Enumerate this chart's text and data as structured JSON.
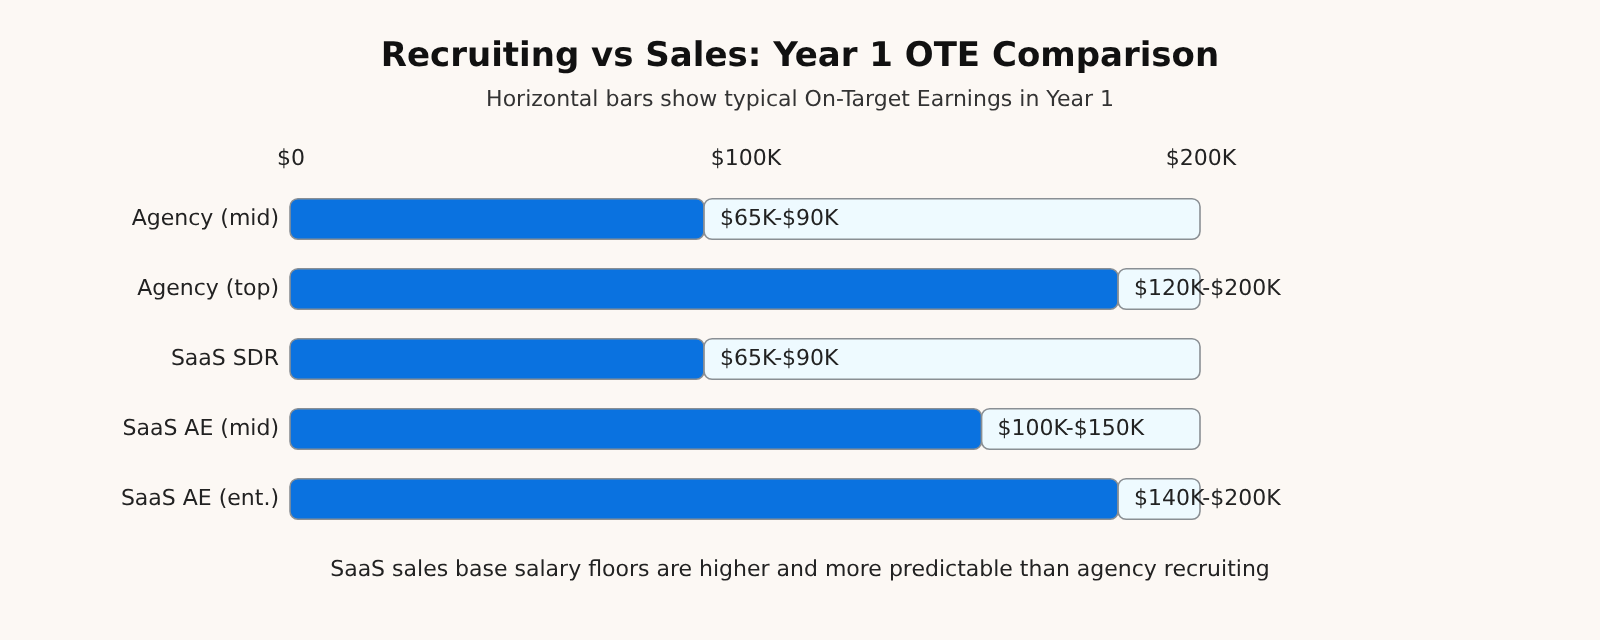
{
  "chart_data": {
    "type": "bar",
    "orientation": "horizontal",
    "stacked": true,
    "title": "Recruiting vs Sales: Year 1 OTE Comparison",
    "subtitle": "Horizontal bars show typical On-Target Earnings in Year 1",
    "categories": [
      "Agency (mid)",
      "Agency (top)",
      "SaaS SDR",
      "SaaS AE (mid)",
      "SaaS AE (ent.)"
    ],
    "series": [
      {
        "color": "#0a72e0",
        "values": [
          91,
          182,
          91,
          152,
          182
        ]
      },
      {
        "color": "#eefaff",
        "values": [
          109,
          18,
          109,
          48,
          18
        ]
      }
    ],
    "xlim": [
      0,
      200
    ],
    "xticks": [
      {
        "value": 0,
        "label": "$0"
      },
      {
        "value": 100,
        "label": "$100K"
      },
      {
        "value": 200,
        "label": "$200K"
      }
    ],
    "grid": false,
    "legend": false,
    "annotations": [
      {
        "text": "$65K-$90K",
        "x": 91,
        "y": "Agency (mid)"
      },
      {
        "text": "$120K-$200K",
        "x": 182,
        "y": "Agency (top)"
      },
      {
        "text": "$65K-$90K",
        "x": 91,
        "y": "SaaS SDR"
      },
      {
        "text": "$100K-$150K",
        "x": 152,
        "y": "SaaS AE (mid)"
      },
      {
        "text": "$140K-$200K",
        "x": 182,
        "y": "SaaS AE (ent.)"
      },
      "SaaS sales base salary floors are higher and more predictable than agency recruiting"
    ]
  }
}
